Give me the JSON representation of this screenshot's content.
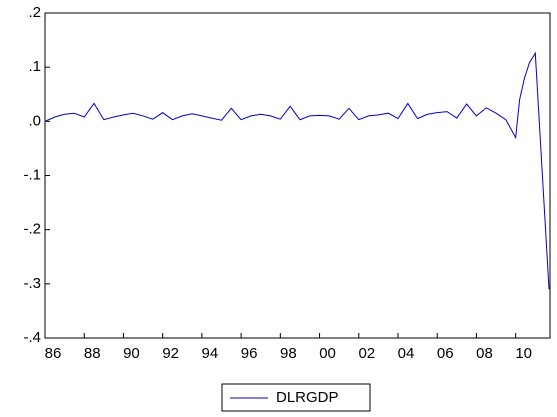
{
  "chart_data": {
    "type": "line",
    "x": [
      1986.0,
      1986.5,
      1987.0,
      1987.5,
      1988.0,
      1988.5,
      1989.0,
      1989.5,
      1990.0,
      1990.5,
      1991.0,
      1991.5,
      1992.0,
      1992.5,
      1993.0,
      1993.5,
      1994.0,
      1994.5,
      1995.0,
      1995.5,
      1996.0,
      1996.5,
      1997.0,
      1997.5,
      1998.0,
      1998.5,
      1999.0,
      1999.5,
      2000.0,
      2000.5,
      2001.0,
      2001.5,
      2002.0,
      2002.5,
      2003.0,
      2003.5,
      2004.0,
      2004.5,
      2005.0,
      2005.5,
      2006.0,
      2006.5,
      2007.0,
      2007.5,
      2008.0,
      2008.5,
      2009.0,
      2009.5,
      2010.0,
      2010.2,
      2010.45,
      2010.7,
      2011.0,
      2011.7
    ],
    "series": [
      {
        "name": "DLRGDP",
        "color": "#0000cc",
        "values": [
          0.0,
          0.008,
          0.013,
          0.015,
          0.008,
          0.033,
          0.003,
          0.008,
          0.012,
          0.015,
          0.01,
          0.004,
          0.016,
          0.003,
          0.01,
          0.014,
          0.01,
          0.006,
          0.002,
          0.024,
          0.003,
          0.01,
          0.013,
          0.01,
          0.004,
          0.028,
          0.003,
          0.01,
          0.011,
          0.01,
          0.004,
          0.024,
          0.003,
          0.01,
          0.012,
          0.015,
          0.005,
          0.033,
          0.005,
          0.013,
          0.016,
          0.018,
          0.006,
          0.032,
          0.01,
          0.025,
          0.015,
          0.003,
          -0.03,
          0.04,
          0.08,
          0.108,
          0.126,
          -0.31
        ]
      }
    ],
    "xlim": [
      1986,
      2011.75
    ],
    "ylim": [
      -0.4,
      0.2
    ],
    "xticks": [
      {
        "value": 1986,
        "label": "86"
      },
      {
        "value": 1988,
        "label": "88"
      },
      {
        "value": 1990,
        "label": "90"
      },
      {
        "value": 1992,
        "label": "92"
      },
      {
        "value": 1994,
        "label": "94"
      },
      {
        "value": 1996,
        "label": "96"
      },
      {
        "value": 1998,
        "label": "98"
      },
      {
        "value": 2000,
        "label": "00"
      },
      {
        "value": 2002,
        "label": "02"
      },
      {
        "value": 2004,
        "label": "04"
      },
      {
        "value": 2006,
        "label": "06"
      },
      {
        "value": 2008,
        "label": "08"
      },
      {
        "value": 2010,
        "label": "10"
      }
    ],
    "yticks": [
      {
        "value": 0.2,
        "label": ".2"
      },
      {
        "value": 0.1,
        "label": ".1"
      },
      {
        "value": 0,
        "label": ".0"
      },
      {
        "value": -0.1,
        "label": "-.1"
      },
      {
        "value": -0.2,
        "label": "-.2"
      },
      {
        "value": -0.3,
        "label": "-.3"
      },
      {
        "value": -0.4,
        "label": "-.4"
      }
    ],
    "legend": "bottom"
  }
}
